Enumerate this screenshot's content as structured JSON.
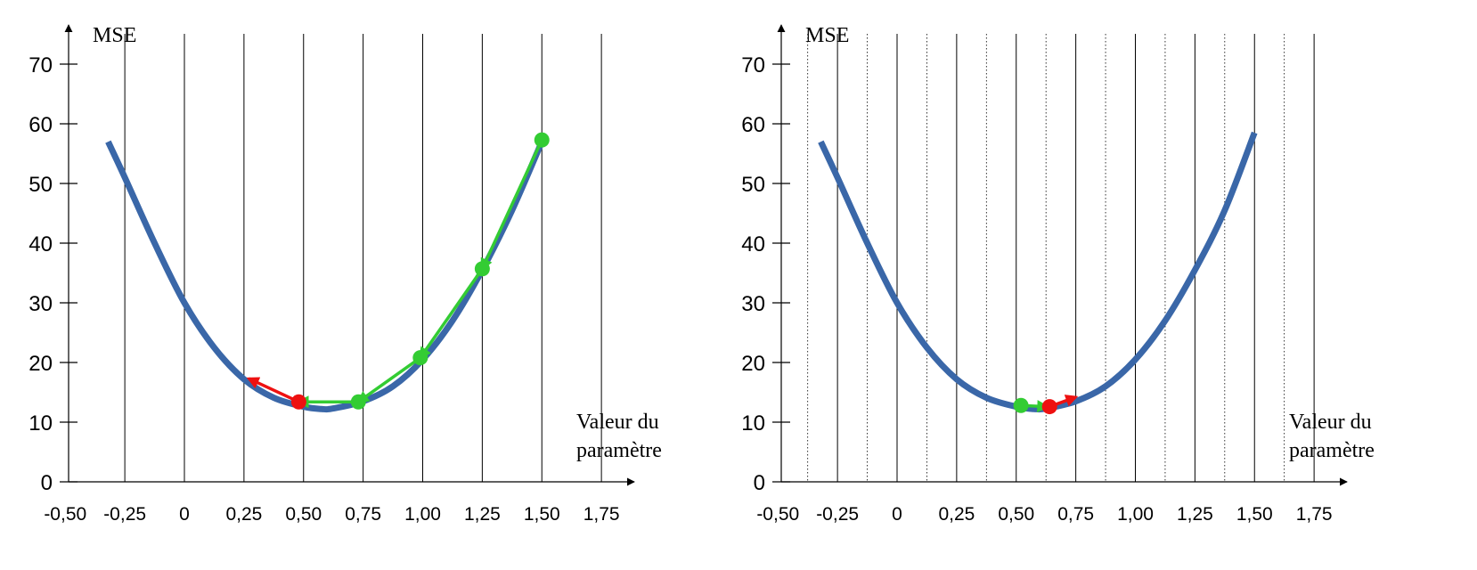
{
  "chart_data": [
    {
      "type": "line",
      "ylabel": "MSE",
      "xlabel_line1": "Valeur du",
      "xlabel_line2": "paramètre",
      "xlim": [
        -0.5,
        1.75
      ],
      "ylim": [
        0,
        70
      ],
      "x_ticks": [
        "-0,50",
        "-0,25",
        "0",
        "0,25",
        "0,50",
        "0,75",
        "1,00",
        "1,25",
        "1,50",
        "1,75"
      ],
      "y_ticks": [
        "0",
        "10",
        "20",
        "30",
        "40",
        "50",
        "60",
        "70"
      ],
      "grid": "vertical major lines every 0.25",
      "curve": {
        "color": "#3a67a8",
        "x": [
          -0.32,
          -0.25,
          -0.125,
          0,
          0.125,
          0.25,
          0.375,
          0.5,
          0.575,
          0.625,
          0.75,
          0.875,
          1.0,
          1.125,
          1.25,
          1.375,
          1.5
        ],
        "y": [
          57,
          51,
          40,
          30,
          22.5,
          17.2,
          14.1,
          12.6,
          12.2,
          12.3,
          13.5,
          16.0,
          20.5,
          27.0,
          35.5,
          45.5,
          57
        ]
      },
      "steps": [
        {
          "color": "#33cc33",
          "from": [
            1.5,
            57.3
          ],
          "to": [
            1.25,
            35.7
          ]
        },
        {
          "color": "#33cc33",
          "from": [
            1.25,
            35.7
          ],
          "to": [
            0.99,
            20.8
          ]
        },
        {
          "color": "#33cc33",
          "from": [
            0.99,
            20.8
          ],
          "to": [
            0.73,
            13.4
          ]
        },
        {
          "color": "#33cc33",
          "from": [
            0.73,
            13.4
          ],
          "to": [
            0.48,
            13.4
          ]
        },
        {
          "color": "#ee1111",
          "from": [
            0.48,
            13.4
          ],
          "to": [
            0.27,
            17.3
          ]
        }
      ],
      "points": [
        {
          "x": 1.5,
          "y": 57.3,
          "color": "#33cc33"
        },
        {
          "x": 1.25,
          "y": 35.7,
          "color": "#33cc33"
        },
        {
          "x": 0.99,
          "y": 20.8,
          "color": "#33cc33"
        },
        {
          "x": 0.73,
          "y": 13.4,
          "color": "#33cc33"
        },
        {
          "x": 0.48,
          "y": 13.4,
          "color": "#ee1111"
        }
      ]
    },
    {
      "type": "line",
      "ylabel": "MSE",
      "xlabel_line1": "Valeur du",
      "xlabel_line2": "paramètre",
      "xlim": [
        -0.5,
        1.75
      ],
      "ylim": [
        0,
        70
      ],
      "x_ticks": [
        "-0,50",
        "-0,25",
        "0",
        "0,25",
        "0,50",
        "0,75",
        "1,00",
        "1,25",
        "1,50",
        "1,75"
      ],
      "y_ticks": [
        "0",
        "10",
        "20",
        "30",
        "40",
        "50",
        "60",
        "70"
      ],
      "grid": "vertical major lines every 0.25 and dotted minor lines every 0.125",
      "curve": {
        "color": "#3a67a8",
        "x": [
          -0.32,
          -0.25,
          -0.125,
          0,
          0.125,
          0.25,
          0.375,
          0.5,
          0.575,
          0.625,
          0.75,
          0.875,
          1.0,
          1.125,
          1.25,
          1.375,
          1.5
        ],
        "y": [
          57,
          51,
          40,
          30,
          22.5,
          17.2,
          14.1,
          12.6,
          12.2,
          12.3,
          13.5,
          16.0,
          20.5,
          27.0,
          35.5,
          45.5,
          58.5
        ]
      },
      "steps": [
        {
          "color": "#33cc33",
          "from": [
            0.52,
            12.8
          ],
          "to": [
            0.63,
            12.6
          ]
        },
        {
          "color": "#ee1111",
          "from": [
            0.64,
            12.6
          ],
          "to": [
            0.75,
            14.2
          ]
        }
      ],
      "points": [
        {
          "x": 0.52,
          "y": 12.8,
          "color": "#33cc33"
        },
        {
          "x": 0.64,
          "y": 12.6,
          "color": "#ee1111"
        }
      ]
    }
  ]
}
